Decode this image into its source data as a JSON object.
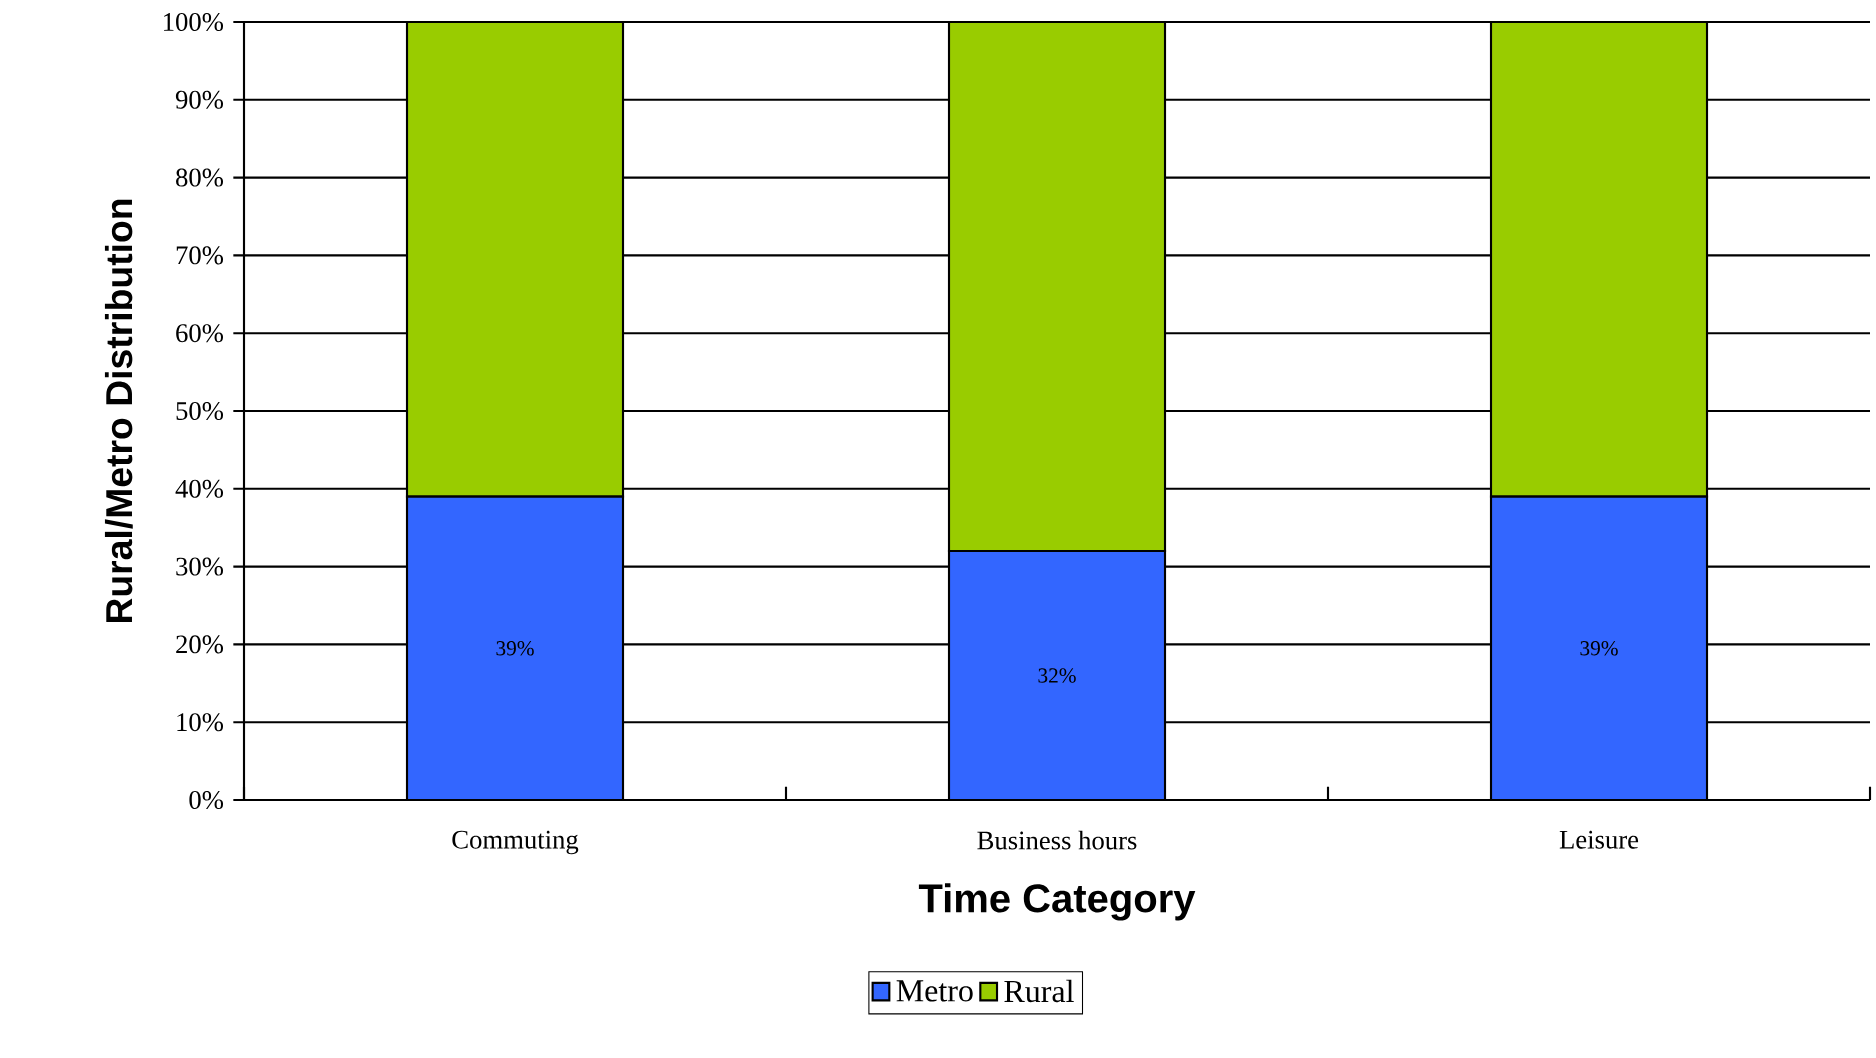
{
  "chart_data": {
    "type": "bar",
    "stacked": true,
    "xlabel": "Time Category",
    "ylabel": "Rural/Metro Distribution",
    "categories": [
      "Commuting",
      "Business hours",
      "Leisure"
    ],
    "series": [
      {
        "name": "Metro",
        "color": "#3366ff",
        "values": [
          39,
          32,
          39
        ],
        "value_labels": [
          "39%",
          "32%",
          "39%"
        ]
      },
      {
        "name": "Rural",
        "color": "#99cc00",
        "values": [
          61,
          68,
          61
        ]
      }
    ],
    "ylim": [
      0,
      100
    ],
    "yticks": [
      {
        "value": 0,
        "label": "0%"
      },
      {
        "value": 10,
        "label": "10%"
      },
      {
        "value": 20,
        "label": "20%"
      },
      {
        "value": 30,
        "label": "30%"
      },
      {
        "value": 40,
        "label": "40%"
      },
      {
        "value": 50,
        "label": "50%"
      },
      {
        "value": 60,
        "label": "60%"
      },
      {
        "value": 70,
        "label": "70%"
      },
      {
        "value": 80,
        "label": "80%"
      },
      {
        "value": 90,
        "label": "90%"
      },
      {
        "value": 100,
        "label": "100%"
      }
    ],
    "grid": "y",
    "legend": "bottom"
  }
}
